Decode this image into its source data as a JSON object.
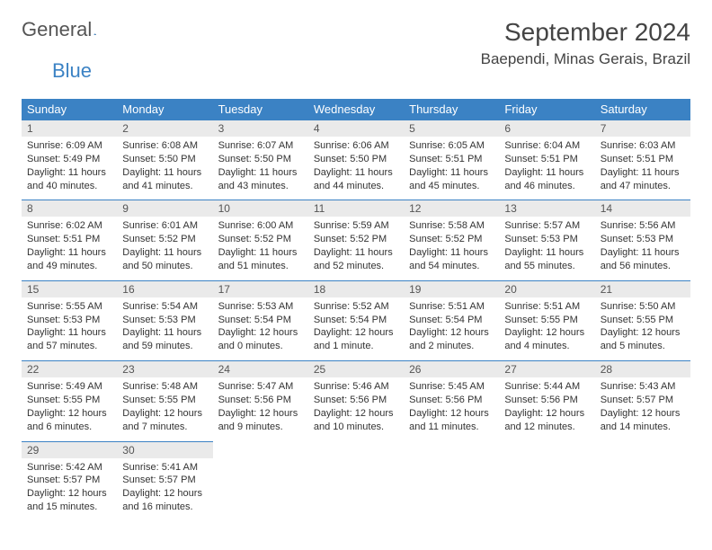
{
  "logo": {
    "text1": "General",
    "text2": "Blue"
  },
  "header": {
    "month": "September 2024",
    "location": "Baependi, Minas Gerais, Brazil"
  },
  "colors": {
    "accent": "#3b82c4",
    "daynum_bg": "#eaeaea",
    "text": "#333333",
    "header_text": "#444444"
  },
  "weekdays": [
    "Sunday",
    "Monday",
    "Tuesday",
    "Wednesday",
    "Thursday",
    "Friday",
    "Saturday"
  ],
  "days": [
    {
      "n": "1",
      "sr": "6:09 AM",
      "ss": "5:49 PM",
      "dl": "11 hours and 40 minutes."
    },
    {
      "n": "2",
      "sr": "6:08 AM",
      "ss": "5:50 PM",
      "dl": "11 hours and 41 minutes."
    },
    {
      "n": "3",
      "sr": "6:07 AM",
      "ss": "5:50 PM",
      "dl": "11 hours and 43 minutes."
    },
    {
      "n": "4",
      "sr": "6:06 AM",
      "ss": "5:50 PM",
      "dl": "11 hours and 44 minutes."
    },
    {
      "n": "5",
      "sr": "6:05 AM",
      "ss": "5:51 PM",
      "dl": "11 hours and 45 minutes."
    },
    {
      "n": "6",
      "sr": "6:04 AM",
      "ss": "5:51 PM",
      "dl": "11 hours and 46 minutes."
    },
    {
      "n": "7",
      "sr": "6:03 AM",
      "ss": "5:51 PM",
      "dl": "11 hours and 47 minutes."
    },
    {
      "n": "8",
      "sr": "6:02 AM",
      "ss": "5:51 PM",
      "dl": "11 hours and 49 minutes."
    },
    {
      "n": "9",
      "sr": "6:01 AM",
      "ss": "5:52 PM",
      "dl": "11 hours and 50 minutes."
    },
    {
      "n": "10",
      "sr": "6:00 AM",
      "ss": "5:52 PM",
      "dl": "11 hours and 51 minutes."
    },
    {
      "n": "11",
      "sr": "5:59 AM",
      "ss": "5:52 PM",
      "dl": "11 hours and 52 minutes."
    },
    {
      "n": "12",
      "sr": "5:58 AM",
      "ss": "5:52 PM",
      "dl": "11 hours and 54 minutes."
    },
    {
      "n": "13",
      "sr": "5:57 AM",
      "ss": "5:53 PM",
      "dl": "11 hours and 55 minutes."
    },
    {
      "n": "14",
      "sr": "5:56 AM",
      "ss": "5:53 PM",
      "dl": "11 hours and 56 minutes."
    },
    {
      "n": "15",
      "sr": "5:55 AM",
      "ss": "5:53 PM",
      "dl": "11 hours and 57 minutes."
    },
    {
      "n": "16",
      "sr": "5:54 AM",
      "ss": "5:53 PM",
      "dl": "11 hours and 59 minutes."
    },
    {
      "n": "17",
      "sr": "5:53 AM",
      "ss": "5:54 PM",
      "dl": "12 hours and 0 minutes."
    },
    {
      "n": "18",
      "sr": "5:52 AM",
      "ss": "5:54 PM",
      "dl": "12 hours and 1 minute."
    },
    {
      "n": "19",
      "sr": "5:51 AM",
      "ss": "5:54 PM",
      "dl": "12 hours and 2 minutes."
    },
    {
      "n": "20",
      "sr": "5:51 AM",
      "ss": "5:55 PM",
      "dl": "12 hours and 4 minutes."
    },
    {
      "n": "21",
      "sr": "5:50 AM",
      "ss": "5:55 PM",
      "dl": "12 hours and 5 minutes."
    },
    {
      "n": "22",
      "sr": "5:49 AM",
      "ss": "5:55 PM",
      "dl": "12 hours and 6 minutes."
    },
    {
      "n": "23",
      "sr": "5:48 AM",
      "ss": "5:55 PM",
      "dl": "12 hours and 7 minutes."
    },
    {
      "n": "24",
      "sr": "5:47 AM",
      "ss": "5:56 PM",
      "dl": "12 hours and 9 minutes."
    },
    {
      "n": "25",
      "sr": "5:46 AM",
      "ss": "5:56 PM",
      "dl": "12 hours and 10 minutes."
    },
    {
      "n": "26",
      "sr": "5:45 AM",
      "ss": "5:56 PM",
      "dl": "12 hours and 11 minutes."
    },
    {
      "n": "27",
      "sr": "5:44 AM",
      "ss": "5:56 PM",
      "dl": "12 hours and 12 minutes."
    },
    {
      "n": "28",
      "sr": "5:43 AM",
      "ss": "5:57 PM",
      "dl": "12 hours and 14 minutes."
    },
    {
      "n": "29",
      "sr": "5:42 AM",
      "ss": "5:57 PM",
      "dl": "12 hours and 15 minutes."
    },
    {
      "n": "30",
      "sr": "5:41 AM",
      "ss": "5:57 PM",
      "dl": "12 hours and 16 minutes."
    }
  ],
  "labels": {
    "sunrise": "Sunrise: ",
    "sunset": "Sunset: ",
    "daylight": "Daylight: "
  }
}
